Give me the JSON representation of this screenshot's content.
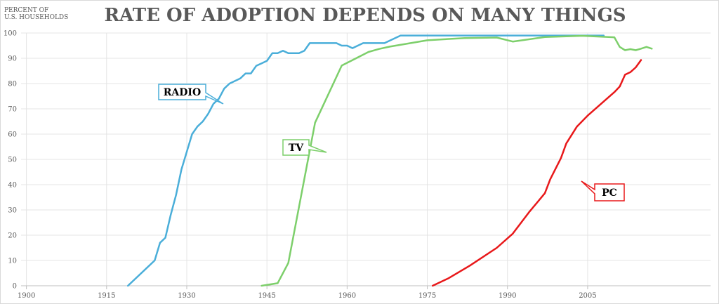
{
  "chart_data": {
    "type": "line",
    "title": "RATE OF ADOPTION DEPENDS ON MANY THINGS",
    "ylabel": [
      "PERCENT OF",
      "U.S. HOUSEHOLDS"
    ],
    "xlabel": "",
    "xlim": [
      1899,
      2028
    ],
    "ylim": [
      0,
      100
    ],
    "x_ticks": [
      1900,
      1915,
      1930,
      1945,
      1960,
      1975,
      1990,
      2005
    ],
    "y_ticks": [
      0,
      10,
      20,
      30,
      40,
      50,
      60,
      70,
      80,
      90,
      100
    ],
    "grid": true,
    "series": [
      {
        "name": "RADIO",
        "color": "#4aaed9",
        "points": [
          [
            1919,
            0
          ],
          [
            1924,
            10
          ],
          [
            1925,
            17
          ],
          [
            1926,
            19
          ],
          [
            1927,
            28
          ],
          [
            1928,
            36
          ],
          [
            1929,
            46
          ],
          [
            1930,
            53
          ],
          [
            1931,
            60
          ],
          [
            1932,
            63
          ],
          [
            1933,
            65
          ],
          [
            1934,
            68
          ],
          [
            1935,
            72
          ],
          [
            1936,
            74
          ],
          [
            1937,
            78
          ],
          [
            1938,
            80
          ],
          [
            1939,
            81
          ],
          [
            1940,
            82
          ],
          [
            1941,
            84
          ],
          [
            1942,
            84
          ],
          [
            1943,
            87
          ],
          [
            1944,
            88
          ],
          [
            1945,
            89
          ],
          [
            1946,
            92
          ],
          [
            1947,
            92
          ],
          [
            1948,
            93
          ],
          [
            1949,
            92
          ],
          [
            1950,
            92
          ],
          [
            1951,
            92
          ],
          [
            1952,
            93
          ],
          [
            1953,
            96
          ],
          [
            1958,
            96
          ],
          [
            1959,
            95
          ],
          [
            1960,
            95
          ],
          [
            1961,
            94
          ],
          [
            1963,
            96
          ],
          [
            1967,
            96
          ],
          [
            1968,
            97
          ],
          [
            1970,
            99
          ],
          [
            2008,
            99
          ]
        ]
      },
      {
        "name": "TV",
        "color": "#7dcf6b",
        "points": [
          [
            1944,
            0
          ],
          [
            1947,
            1
          ],
          [
            1949,
            9
          ],
          [
            1954,
            64.5
          ],
          [
            1959,
            87.1
          ],
          [
            1964,
            92.5
          ],
          [
            1966,
            93.7
          ],
          [
            1968,
            94.6
          ],
          [
            1975,
            97.1
          ],
          [
            1978,
            97.5
          ],
          [
            1982,
            98
          ],
          [
            1988,
            98.2
          ],
          [
            1991,
            96.6
          ],
          [
            1997,
            98.4
          ],
          [
            2004,
            98.9
          ],
          [
            2010,
            98.3
          ],
          [
            2011,
            94.5
          ],
          [
            2012,
            93.2
          ],
          [
            2013,
            93.6
          ],
          [
            2014,
            93.2
          ],
          [
            2015,
            93.8
          ],
          [
            2016,
            94.5
          ],
          [
            2017,
            93.8
          ]
        ]
      },
      {
        "name": "PC",
        "color": "#e8181a",
        "points": [
          [
            1976,
            0
          ],
          [
            1979,
            3
          ],
          [
            1983,
            8
          ],
          [
            1988,
            15
          ],
          [
            1991,
            20.6
          ],
          [
            1994,
            29
          ],
          [
            1997,
            36.6
          ],
          [
            1998,
            42.1
          ],
          [
            2000,
            50.5
          ],
          [
            2001,
            56.3
          ],
          [
            2003,
            63
          ],
          [
            2005,
            67.3
          ],
          [
            2010,
            76.6
          ],
          [
            2011,
            78.8
          ],
          [
            2012,
            83.5
          ],
          [
            2013,
            84.5
          ],
          [
            2014,
            86.4
          ],
          [
            2015,
            89.3
          ]
        ]
      }
    ],
    "annotations": [
      {
        "text": "RADIO",
        "series": "RADIO"
      },
      {
        "text": "TV",
        "series": "TV"
      },
      {
        "text": "PC",
        "series": "PC"
      }
    ]
  }
}
